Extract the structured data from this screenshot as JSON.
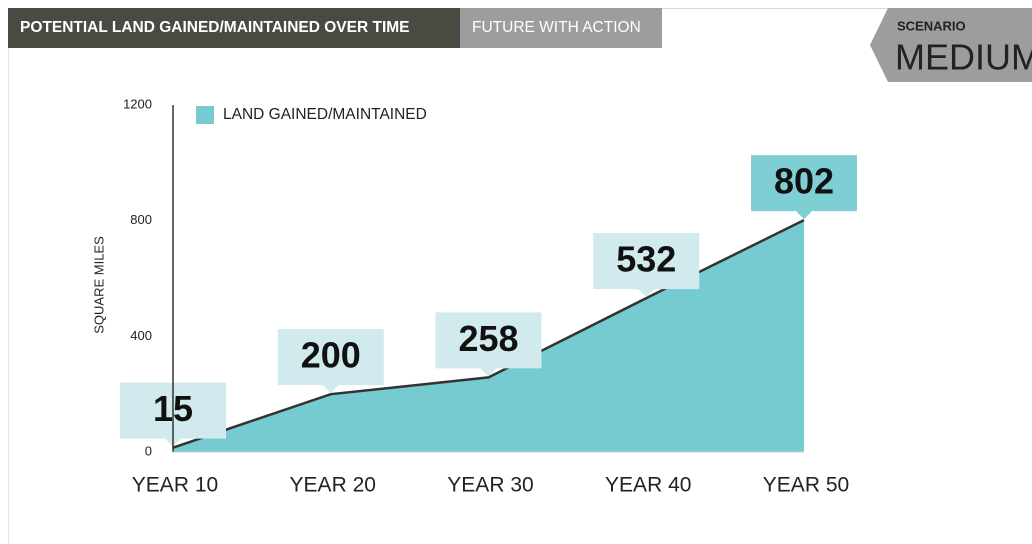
{
  "header": {
    "title": "POTENTIAL LAND GAINED/MAINTAINED OVER TIME",
    "tab": "FUTURE WITH ACTION"
  },
  "scenario": {
    "label": "SCENARIO",
    "value": "MEDIUM"
  },
  "chart_data": {
    "type": "area",
    "categories": [
      "YEAR 10",
      "YEAR 20",
      "YEAR 30",
      "YEAR 40",
      "YEAR 50"
    ],
    "series": [
      {
        "name": "LAND GAINED/MAINTAINED",
        "color": "#76cbd0",
        "values": [
          15,
          200,
          258,
          532,
          802
        ]
      }
    ],
    "y_label": "SQUARE MILES",
    "ylim": [
      0,
      1200
    ],
    "yticks": [
      0,
      400,
      800,
      1200
    ]
  }
}
